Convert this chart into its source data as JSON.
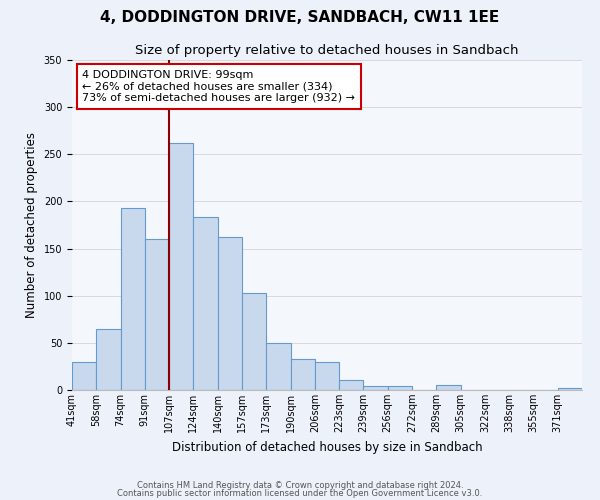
{
  "title": "4, DODDINGTON DRIVE, SANDBACH, CW11 1EE",
  "subtitle": "Size of property relative to detached houses in Sandbach",
  "xlabel": "Distribution of detached houses by size in Sandbach",
  "ylabel": "Number of detached properties",
  "bin_labels": [
    "41sqm",
    "58sqm",
    "74sqm",
    "91sqm",
    "107sqm",
    "124sqm",
    "140sqm",
    "157sqm",
    "173sqm",
    "190sqm",
    "206sqm",
    "223sqm",
    "239sqm",
    "256sqm",
    "272sqm",
    "289sqm",
    "305sqm",
    "322sqm",
    "338sqm",
    "355sqm",
    "371sqm"
  ],
  "bar_values": [
    30,
    65,
    193,
    160,
    262,
    183,
    162,
    103,
    50,
    33,
    30,
    11,
    4,
    4,
    0,
    5,
    0,
    0,
    0,
    0,
    2
  ],
  "bar_color": "#c9d9ed",
  "bar_edge_color": "#6699cc",
  "bar_linewidth": 0.8,
  "vline_x": 4,
  "vline_color": "#8b0000",
  "vline_linewidth": 1.5,
  "ylim": [
    0,
    350
  ],
  "annotation_box_text": "4 DODDINGTON DRIVE: 99sqm\n← 26% of detached houses are smaller (334)\n73% of semi-detached houses are larger (932) →",
  "annotation_box_color": "#ffffff",
  "annotation_box_edge_color": "#cc0000",
  "footnote1": "Contains HM Land Registry data © Crown copyright and database right 2024.",
  "footnote2": "Contains public sector information licensed under the Open Government Licence v3.0.",
  "title_fontsize": 11,
  "subtitle_fontsize": 9.5,
  "xlabel_fontsize": 8.5,
  "ylabel_fontsize": 8.5,
  "tick_fontsize": 7,
  "annotation_fontsize": 8,
  "footnote_fontsize": 6,
  "bg_color": "#edf2fa",
  "plot_bg_color": "#f4f7fc"
}
